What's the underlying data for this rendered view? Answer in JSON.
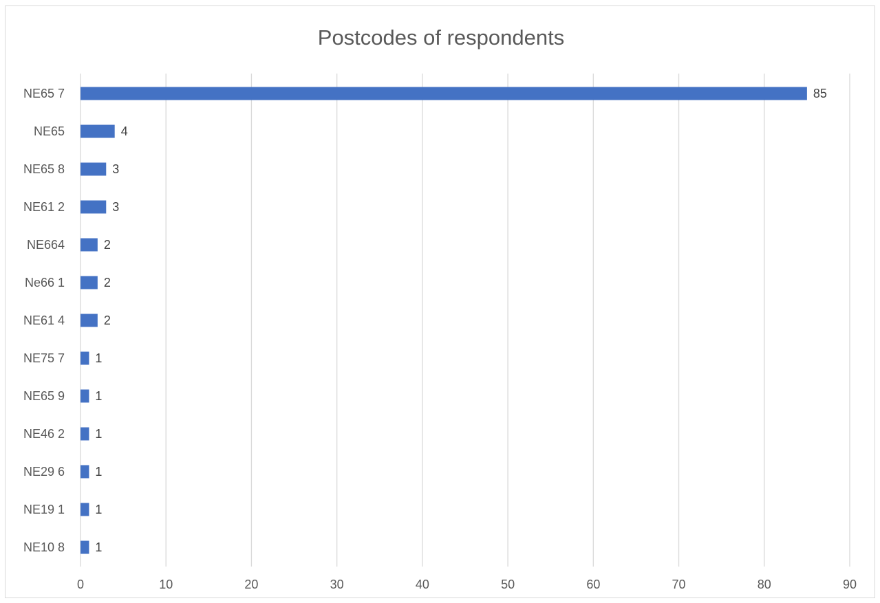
{
  "chart_data": {
    "type": "bar",
    "orientation": "horizontal",
    "title": "Postcodes of respondents",
    "xlabel": "",
    "ylabel": "",
    "categories": [
      "NE65 7",
      "NE65",
      "NE65 8",
      "NE61 2",
      "NE664",
      "Ne66 1",
      "NE61 4",
      "NE75 7",
      "NE65 9",
      "NE46 2",
      "NE29 6",
      "NE19 1",
      "NE10 8"
    ],
    "values": [
      85,
      4,
      3,
      3,
      2,
      2,
      2,
      1,
      1,
      1,
      1,
      1,
      1
    ],
    "xlim": [
      0,
      90
    ],
    "xticks": [
      0,
      10,
      20,
      30,
      40,
      50,
      60,
      70,
      80,
      90
    ],
    "grid": "vertical",
    "legend": "none",
    "data_labels": true,
    "colors": {
      "bar": "#4472c4",
      "grid": "#d9d9d9",
      "text": "#595959",
      "data_label": "#404040",
      "border": "#d9d9d9"
    }
  }
}
